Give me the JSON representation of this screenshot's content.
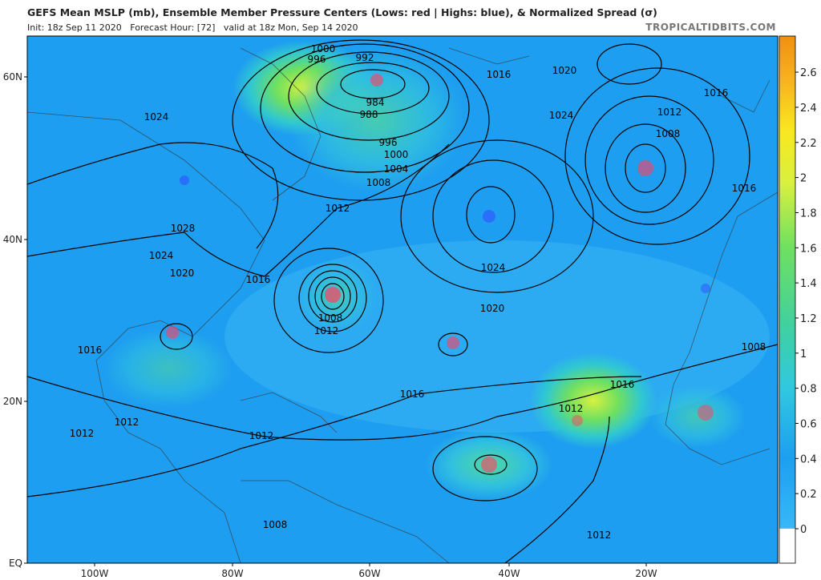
{
  "header": {
    "title": "GEFS Mean MSLP (mb), Ensemble Member Pressure Centers (Lows: red | Highs: blue), & Normalized Spread (σ)",
    "subtitle": "Init: 18z Sep 11 2020   Forecast Hour: [72]   valid at 18z Mon, Sep 14 2020",
    "brand": "TROPICALTIDBITS.COM"
  },
  "map": {
    "latitude_labels": [
      "60N",
      "40N",
      "20N",
      "EQ"
    ],
    "longitude_labels": [
      "100W",
      "80W",
      "60W",
      "40W",
      "20W"
    ],
    "isobar_labels": [
      1000,
      996,
      992,
      984,
      988,
      996,
      1000,
      1004,
      1008,
      1012,
      1016,
      1020,
      1024,
      1016,
      1012,
      1008,
      1016,
      1024,
      1028,
      1024,
      1020,
      1016,
      1008,
      1012,
      1024,
      1020,
      1016,
      1016,
      1012,
      1008,
      1016,
      1012,
      1012,
      1012,
      1008,
      1012
    ]
  },
  "colorbar": {
    "ticks": [
      0,
      0.2,
      0.4,
      0.6,
      0.8,
      1,
      1.2,
      1.4,
      1.6,
      1.8,
      2,
      2.2,
      2.4,
      2.6
    ]
  }
}
